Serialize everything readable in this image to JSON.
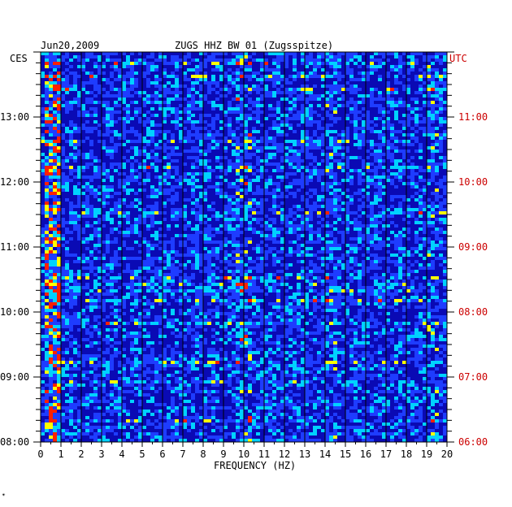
{
  "header": {
    "date": "Jun20,2009",
    "station": "ZUGS HHZ BW 01 (Zugsspitze)",
    "left_tz": "CES",
    "right_tz": "UTC"
  },
  "chart_data": {
    "type": "heatmap",
    "title": "ZUGS HHZ BW 01 (Zugsspitze)",
    "xlabel": "FREQUENCY (HZ)",
    "xlim": [
      0,
      20
    ],
    "x_ticks": [
      "0",
      "1",
      "2",
      "3",
      "4",
      "5",
      "6",
      "7",
      "8",
      "9",
      "10",
      "11",
      "12",
      "13",
      "14",
      "15",
      "16",
      "17",
      "18",
      "19",
      "20"
    ],
    "left_time_ticks": [
      "13:00",
      "12:00",
      "11:00",
      "10:00",
      "09:00",
      "08:00"
    ],
    "right_time_ticks": [
      "11:00",
      "10:00",
      "09:00",
      "08:00",
      "07:00",
      "06:00"
    ],
    "time_range_local": [
      "08:00",
      "13:50"
    ],
    "colors": {
      "background": "#0a0ab4",
      "low": "#1e3cff",
      "mid": "#00d2ff",
      "high": "#ffff00",
      "peak": "#ff2000",
      "right_axis": "#cc0000"
    },
    "features": [
      {
        "name": "microseism band",
        "freq_hz": [
          0.2,
          0.8
        ],
        "intensity": "high"
      },
      {
        "name": "persistent line",
        "freq_hz": [
          9.4,
          9.8
        ],
        "intensity": "medium"
      },
      {
        "name": "intermittent line",
        "freq_hz": [
          10.0,
          10.2
        ],
        "intensity": "medium"
      },
      {
        "name": "intermittent line",
        "freq_hz": [
          14.0,
          14.4
        ],
        "intensity": "low"
      },
      {
        "name": "intermittent line",
        "freq_hz": [
          18.8,
          19.4
        ],
        "intensity": "low"
      }
    ]
  },
  "footer_mark": "✴"
}
